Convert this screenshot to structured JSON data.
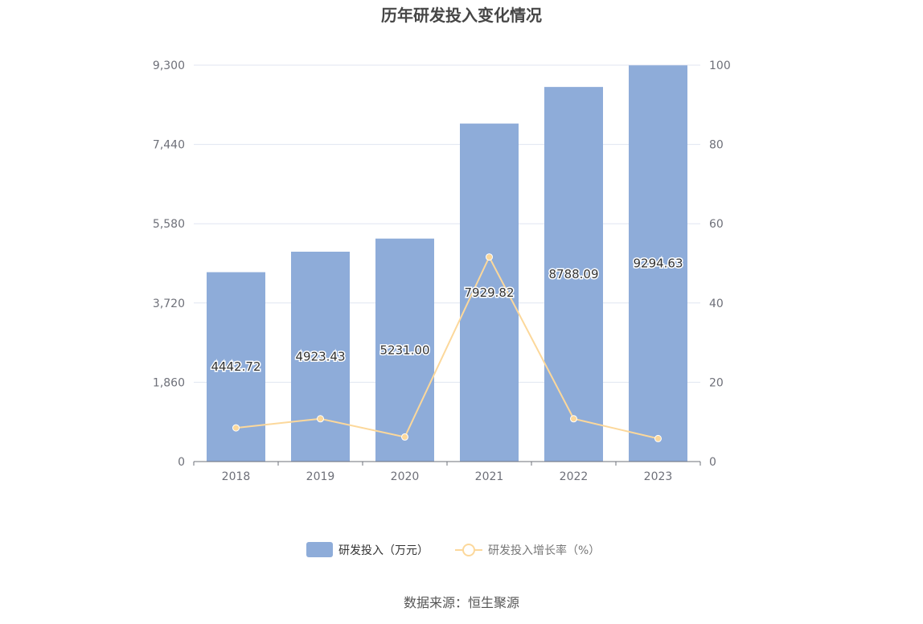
{
  "chart_data": {
    "type": "bar",
    "title": "历年研发投入变化情况",
    "categories": [
      "2018",
      "2019",
      "2020",
      "2021",
      "2022",
      "2023"
    ],
    "series": [
      {
        "name": "研发投入（万元）",
        "type": "bar",
        "axis": "left",
        "color": "#8eacd9",
        "values": [
          4442.72,
          4923.43,
          5231.0,
          7929.82,
          8788.09,
          9294.63
        ],
        "labels": [
          "4442.72",
          "4923.43",
          "5231.00",
          "7929.82",
          "8788.09",
          "9294.63"
        ]
      },
      {
        "name": "研发投入增长率（%）",
        "type": "line",
        "axis": "right",
        "color": "#fcd89b",
        "values": [
          8.5,
          10.8,
          6.2,
          51.6,
          10.8,
          5.8
        ]
      }
    ],
    "y_left": {
      "min": 0,
      "max": 9300,
      "ticks": [
        0,
        1860,
        3720,
        5580,
        7440,
        9300
      ],
      "tick_labels": [
        "0",
        "1,860",
        "3,720",
        "5,580",
        "7,440",
        "9,300"
      ]
    },
    "y_right": {
      "min": 0,
      "max": 100,
      "ticks": [
        0,
        20,
        40,
        60,
        80,
        100
      ],
      "tick_labels": [
        "0",
        "20",
        "40",
        "60",
        "80",
        "100"
      ]
    },
    "grid": true,
    "legend_position": "bottom",
    "source": "数据来源：恒生聚源"
  }
}
